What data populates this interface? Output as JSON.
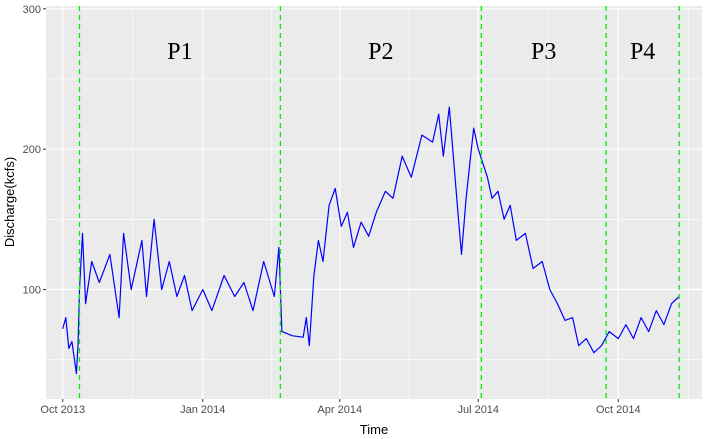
{
  "chart_data": {
    "type": "line",
    "title": "",
    "xlabel": "Time",
    "ylabel": "Discharge(kcfs)",
    "x_range": [
      "2013-09-20",
      "2014-11-25"
    ],
    "ylim": [
      22,
      302
    ],
    "x_ticks": [
      {
        "date": "2013-10-01",
        "label": "Oct 2013"
      },
      {
        "date": "2014-01-01",
        "label": "Jan 2014"
      },
      {
        "date": "2014-04-01",
        "label": "Apr 2014"
      },
      {
        "date": "2014-07-01",
        "label": "Jul 2014"
      },
      {
        "date": "2014-10-01",
        "label": "Oct 2014"
      }
    ],
    "y_ticks": [
      100,
      200,
      300
    ],
    "grid": true,
    "background": "#ebebeb",
    "gridline_color": "#ffffff",
    "series": [
      {
        "color": "#0000ff",
        "points": [
          [
            "2013-10-01",
            72
          ],
          [
            "2013-10-03",
            80
          ],
          [
            "2013-10-05",
            58
          ],
          [
            "2013-10-07",
            63
          ],
          [
            "2013-10-09",
            48
          ],
          [
            "2013-10-10",
            40
          ],
          [
            "2013-10-11",
            60
          ],
          [
            "2013-10-12",
            100
          ],
          [
            "2013-10-14",
            140
          ],
          [
            "2013-10-16",
            90
          ],
          [
            "2013-10-20",
            120
          ],
          [
            "2013-10-25",
            105
          ],
          [
            "2013-11-01",
            125
          ],
          [
            "2013-11-07",
            80
          ],
          [
            "2013-11-10",
            140
          ],
          [
            "2013-11-15",
            100
          ],
          [
            "2013-11-22",
            135
          ],
          [
            "2013-11-25",
            95
          ],
          [
            "2013-11-30",
            150
          ],
          [
            "2013-12-05",
            100
          ],
          [
            "2013-12-10",
            120
          ],
          [
            "2013-12-15",
            95
          ],
          [
            "2013-12-20",
            110
          ],
          [
            "2013-12-25",
            85
          ],
          [
            "2014-01-01",
            100
          ],
          [
            "2014-01-07",
            85
          ],
          [
            "2014-01-15",
            110
          ],
          [
            "2014-01-22",
            95
          ],
          [
            "2014-01-28",
            105
          ],
          [
            "2014-02-03",
            85
          ],
          [
            "2014-02-10",
            120
          ],
          [
            "2014-02-17",
            95
          ],
          [
            "2014-02-20",
            130
          ],
          [
            "2014-02-22",
            70
          ],
          [
            "2014-03-01",
            67
          ],
          [
            "2014-03-08",
            66
          ],
          [
            "2014-03-10",
            80
          ],
          [
            "2014-03-12",
            60
          ],
          [
            "2014-03-15",
            110
          ],
          [
            "2014-03-18",
            135
          ],
          [
            "2014-03-21",
            120
          ],
          [
            "2014-03-25",
            160
          ],
          [
            "2014-03-29",
            172
          ],
          [
            "2014-04-02",
            145
          ],
          [
            "2014-04-06",
            155
          ],
          [
            "2014-04-10",
            130
          ],
          [
            "2014-04-15",
            148
          ],
          [
            "2014-04-20",
            138
          ],
          [
            "2014-04-25",
            155
          ],
          [
            "2014-05-01",
            170
          ],
          [
            "2014-05-06",
            165
          ],
          [
            "2014-05-12",
            195
          ],
          [
            "2014-05-18",
            180
          ],
          [
            "2014-05-25",
            210
          ],
          [
            "2014-06-01",
            205
          ],
          [
            "2014-06-05",
            225
          ],
          [
            "2014-06-08",
            195
          ],
          [
            "2014-06-12",
            230
          ],
          [
            "2014-06-15",
            190
          ],
          [
            "2014-06-18",
            150
          ],
          [
            "2014-06-20",
            125
          ],
          [
            "2014-06-23",
            165
          ],
          [
            "2014-06-26",
            195
          ],
          [
            "2014-06-28",
            215
          ],
          [
            "2014-07-01",
            200
          ],
          [
            "2014-07-04",
            190
          ],
          [
            "2014-07-07",
            180
          ],
          [
            "2014-07-10",
            165
          ],
          [
            "2014-07-14",
            170
          ],
          [
            "2014-07-18",
            150
          ],
          [
            "2014-07-22",
            160
          ],
          [
            "2014-07-26",
            135
          ],
          [
            "2014-08-01",
            140
          ],
          [
            "2014-08-06",
            115
          ],
          [
            "2014-08-12",
            120
          ],
          [
            "2014-08-17",
            100
          ],
          [
            "2014-08-22",
            90
          ],
          [
            "2014-08-27",
            78
          ],
          [
            "2014-09-01",
            80
          ],
          [
            "2014-09-05",
            60
          ],
          [
            "2014-09-10",
            65
          ],
          [
            "2014-09-15",
            55
          ],
          [
            "2014-09-20",
            60
          ],
          [
            "2014-09-25",
            70
          ],
          [
            "2014-10-01",
            65
          ],
          [
            "2014-10-06",
            75
          ],
          [
            "2014-10-11",
            65
          ],
          [
            "2014-10-16",
            80
          ],
          [
            "2014-10-21",
            70
          ],
          [
            "2014-10-26",
            85
          ],
          [
            "2014-10-31",
            75
          ],
          [
            "2014-11-05",
            90
          ],
          [
            "2014-11-10",
            95
          ]
        ]
      }
    ],
    "period_boundaries": [
      "2013-10-12",
      "2014-02-21",
      "2014-07-03",
      "2014-09-23",
      "2014-11-10"
    ],
    "boundary_color": "#00ee00",
    "periods": [
      {
        "label": "P1",
        "start": "2013-10-12",
        "end": "2014-02-21"
      },
      {
        "label": "P2",
        "start": "2014-02-21",
        "end": "2014-07-03"
      },
      {
        "label": "P3",
        "start": "2014-07-03",
        "end": "2014-09-23"
      },
      {
        "label": "P4",
        "start": "2014-09-23",
        "end": "2014-11-10"
      }
    ]
  }
}
